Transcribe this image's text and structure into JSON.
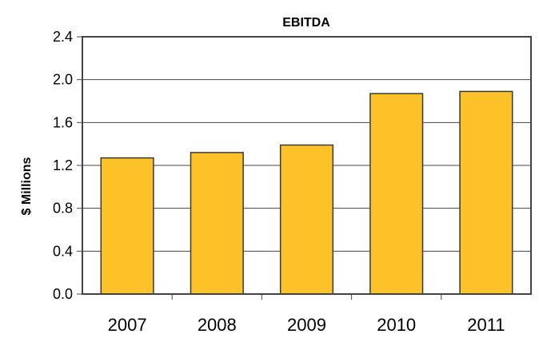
{
  "chart_data": {
    "type": "bar",
    "title": "EBITDA",
    "xlabel": "",
    "ylabel": "$ Millions",
    "categories": [
      "2007",
      "2008",
      "2009",
      "2010",
      "2011"
    ],
    "values": [
      1.27,
      1.32,
      1.39,
      1.87,
      1.89
    ],
    "ylim": [
      0,
      2.4
    ],
    "yticks": [
      "0.0",
      "0.4",
      "0.8",
      "1.2",
      "1.6",
      "2.0",
      "2.4"
    ],
    "grid": true,
    "legend": "none",
    "colors": {
      "bar_fill": "#FDC228",
      "bar_stroke": "#3a3a3a",
      "grid": "#444444",
      "axis": "#444444"
    }
  }
}
